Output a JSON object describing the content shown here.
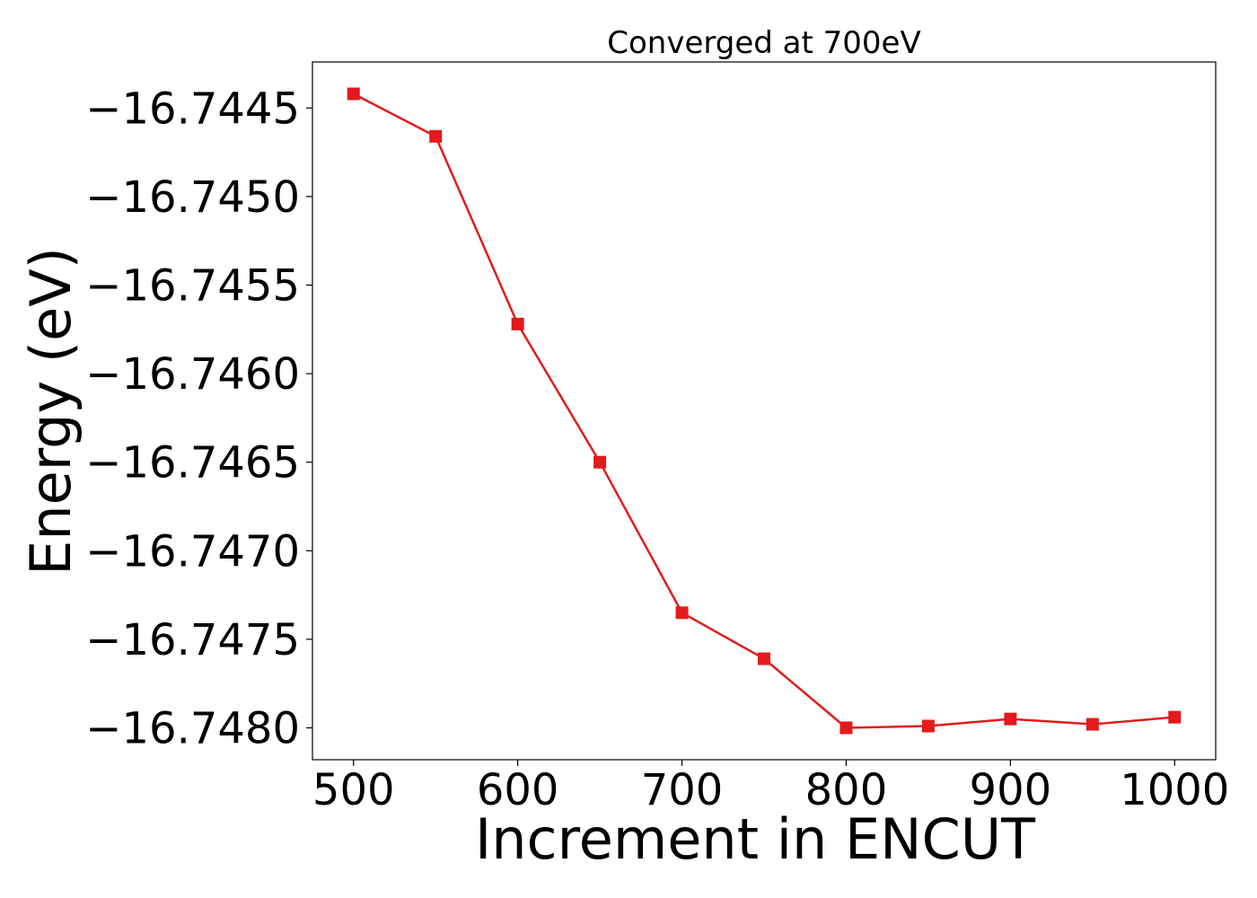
{
  "chart_data": {
    "type": "line",
    "title": "Converged at 700eV",
    "xlabel": "Increment in ENCUT",
    "ylabel": "Energy (eV)",
    "x": [
      500,
      550,
      600,
      650,
      700,
      750,
      800,
      850,
      900,
      950,
      1000
    ],
    "series": [
      {
        "values": [
          -16.74442,
          -16.74466,
          -16.74572,
          -16.7465,
          -16.74735,
          -16.74761,
          -16.748,
          -16.74799,
          -16.74795,
          -16.74798,
          -16.74794
        ],
        "color": "#e41a1c",
        "marker": "square"
      }
    ],
    "xticks": [
      500,
      600,
      700,
      800,
      900,
      1000
    ],
    "xtick_labels": [
      "500",
      "600",
      "700",
      "800",
      "900",
      "1000"
    ],
    "yticks": [
      -16.7445,
      -16.745,
      -16.7455,
      -16.746,
      -16.7465,
      -16.747,
      -16.7475,
      -16.748
    ],
    "ytick_labels": [
      "−16.7445",
      "−16.7450",
      "−16.7455",
      "−16.7460",
      "−16.7465",
      "−16.7470",
      "−16.7475",
      "−16.7480"
    ],
    "xlim": [
      475,
      1025
    ],
    "ylim": [
      -16.74818,
      -16.74424
    ],
    "grid": false,
    "legend": "none"
  }
}
